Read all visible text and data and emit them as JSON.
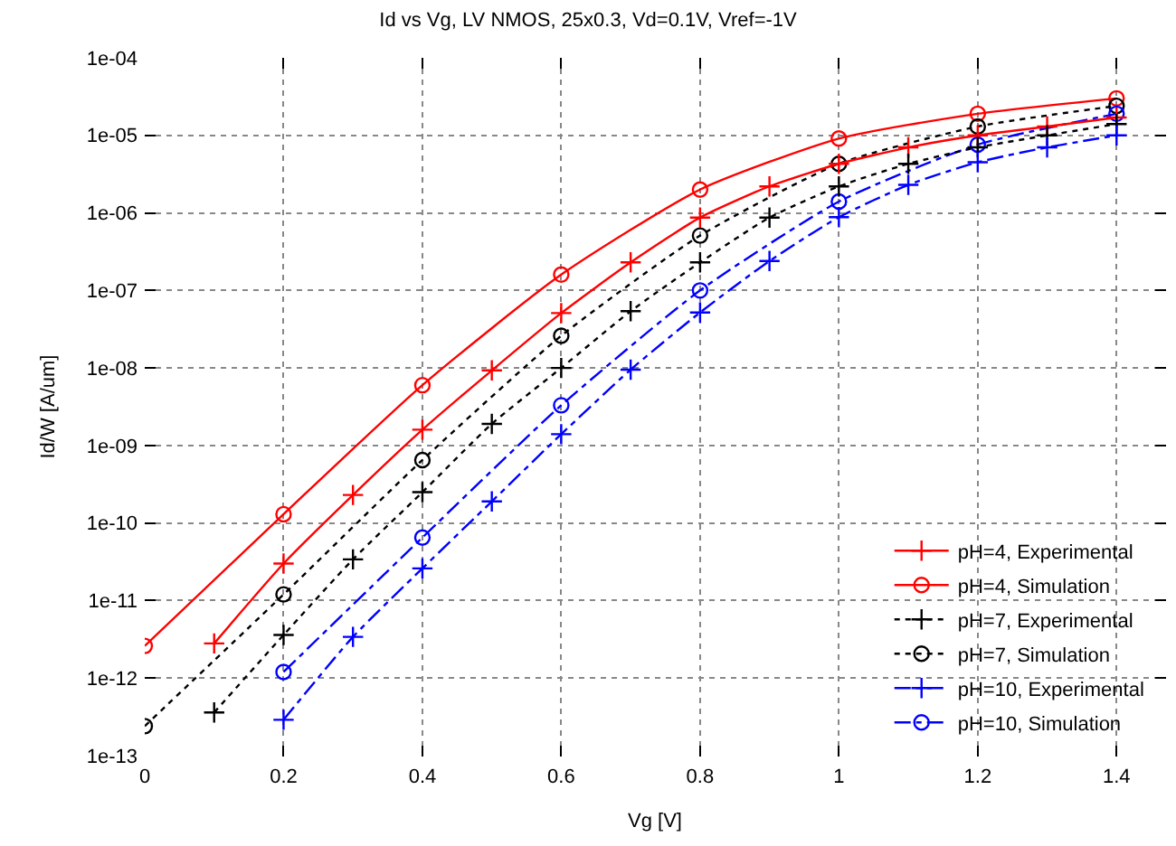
{
  "chart_data": {
    "type": "line",
    "title": "Id vs Vg, LV NMOS, 25x0.3, Vd=0.1V, Vref=-1V",
    "xlabel": "Vg [V]",
    "ylabel": "Id/W [A/um]",
    "log": "y",
    "grid": true,
    "legend": "bottom right",
    "xlim": [
      0,
      1.47
    ],
    "xticks": [
      0,
      0.2,
      0.4,
      0.6,
      0.8,
      1,
      1.2,
      1.4
    ],
    "ylim": [
      1e-13,
      0.0001
    ],
    "yticks": [
      {
        "value": 1e-13,
        "label": "1e-13"
      },
      {
        "value": 1e-12,
        "label": "1e-12"
      },
      {
        "value": 1e-11,
        "label": "1e-11"
      },
      {
        "value": 1e-10,
        "label": "1e-10"
      },
      {
        "value": 1e-09,
        "label": "1e-09"
      },
      {
        "value": 1e-08,
        "label": "1e-08"
      },
      {
        "value": 1e-07,
        "label": "1e-07"
      },
      {
        "value": 1e-06,
        "label": "1e-06"
      },
      {
        "value": 1e-05,
        "label": "1e-05"
      },
      {
        "value": 0.0001,
        "label": "1e-04"
      }
    ],
    "series": [
      {
        "name": "pH=4, Experimental",
        "color": "#ff0000",
        "line_style": "solid",
        "marker": "cross",
        "x": [
          0.1,
          0.2,
          0.3,
          0.4,
          0.5,
          0.6,
          0.7,
          0.8,
          0.9,
          1.0,
          1.1,
          1.2,
          1.3,
          1.4
        ],
        "values": [
          2.8e-12,
          3e-11,
          2.3e-10,
          1.6e-09,
          9.3e-09,
          5.1e-08,
          2.3e-07,
          8.7e-07,
          2.2e-06,
          4.3e-06,
          7e-06,
          1e-05,
          1.3e-05,
          1.7e-05
        ]
      },
      {
        "name": "pH=4, Simulation",
        "color": "#ff0000",
        "line_style": "solid",
        "marker": "circle",
        "x": [
          0,
          0.2,
          0.4,
          0.6,
          0.8,
          1.0,
          1.2,
          1.4
        ],
        "values": [
          2.6e-12,
          1.3e-10,
          6e-09,
          1.6e-07,
          2e-06,
          9.1e-06,
          1.9e-05,
          3e-05
        ]
      },
      {
        "name": "pH=7, Experimental",
        "color": "#000000",
        "line_style": "dotted",
        "marker": "cross",
        "x": [
          0.1,
          0.2,
          0.3,
          0.4,
          0.5,
          0.6,
          0.7,
          0.8,
          0.9,
          1.0,
          1.1,
          1.2,
          1.3,
          1.4
        ],
        "values": [
          3.6e-13,
          3.6e-12,
          3.4e-11,
          2.5e-10,
          1.9e-09,
          1e-08,
          5.4e-08,
          2.3e-07,
          8.7e-07,
          2.2e-06,
          4.3e-06,
          7e-06,
          1e-05,
          1.4e-05
        ]
      },
      {
        "name": "pH=7, Simulation",
        "color": "#000000",
        "line_style": "dotted",
        "marker": "circle",
        "x": [
          0,
          0.2,
          0.4,
          0.6,
          0.8,
          1.0,
          1.2,
          1.4
        ],
        "values": [
          2.4e-13,
          1.2e-11,
          6.5e-10,
          2.6e-08,
          5.1e-07,
          4.3e-06,
          1.3e-05,
          2.4e-05
        ]
      },
      {
        "name": "pH=10, Experimental",
        "color": "#0000ff",
        "line_style": "dashdot",
        "marker": "cross",
        "x": [
          0.2,
          0.3,
          0.4,
          0.5,
          0.6,
          0.7,
          0.8,
          0.9,
          1.0,
          1.1,
          1.2,
          1.3,
          1.4
        ],
        "values": [
          2.9e-13,
          3.4e-12,
          2.6e-11,
          1.9e-10,
          1.4e-09,
          9.5e-09,
          5.2e-08,
          2.4e-07,
          8.8e-07,
          2.3e-06,
          4.5e-06,
          7e-06,
          1e-05
        ]
      },
      {
        "name": "pH=10, Simulation",
        "color": "#0000ff",
        "line_style": "dashdot",
        "marker": "circle",
        "x": [
          0.2,
          0.4,
          0.6,
          0.8,
          1.0,
          1.2,
          1.4
        ],
        "values": [
          1.2e-12,
          6.5e-11,
          3.3e-09,
          1e-07,
          1.4e-06,
          7.6e-06,
          1.9e-05
        ]
      }
    ]
  }
}
